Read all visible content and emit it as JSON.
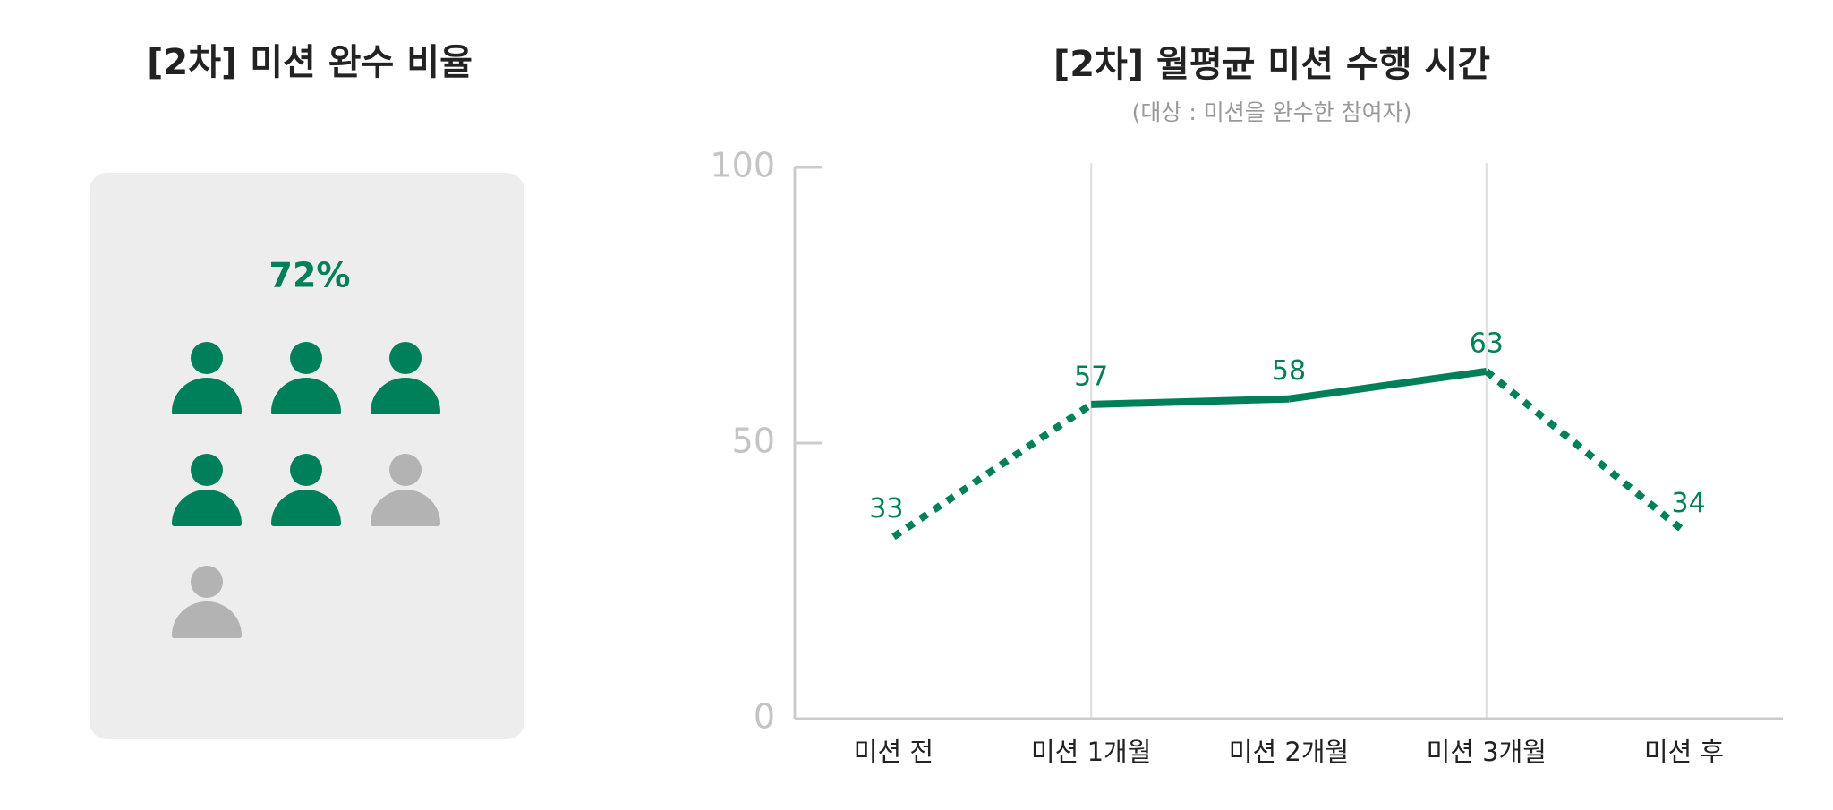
{
  "chart_data": [
    {
      "type": "pictogram",
      "title": "[2차] 미션 완수 비율",
      "value": 72,
      "value_label": "72%",
      "icons_total": 7,
      "icons_filled": 5,
      "color": "#00805a",
      "empty_color": "#b3b3b3"
    },
    {
      "type": "line",
      "title": "[2차] 월평균 미션 수행 시간",
      "subtitle": "(대상 : 미션을 완수한 참여자)",
      "categories": [
        "미션 전",
        "미션 1개월",
        "미션 2개월",
        "미션 3개월",
        "미션 후"
      ],
      "values": [
        33,
        57,
        58,
        63,
        34
      ],
      "color": "#00805a",
      "segment_styles": [
        "dashed",
        "solid",
        "solid",
        "dashed"
      ],
      "vgrid_at": [
        1,
        3
      ],
      "ylim": [
        0,
        100
      ],
      "yticks": [
        0,
        50,
        100
      ]
    }
  ]
}
